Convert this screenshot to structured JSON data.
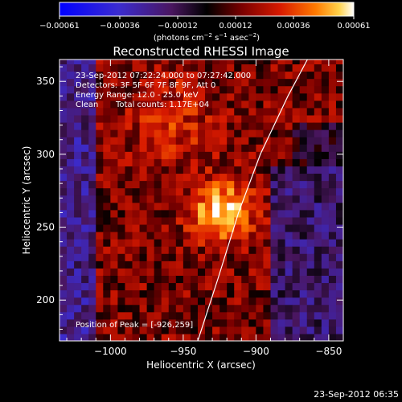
{
  "chart_data": {
    "type": "heatmap",
    "title": "Reconstructed RHESSI Image",
    "xlabel": "Heliocentric X (arcsec)",
    "ylabel": "Heliocentric Y (arcsec)",
    "xlim": [
      -1035,
      -840
    ],
    "ylim": [
      172,
      365
    ],
    "x_ticks": [
      -1000,
      -950,
      -900,
      -850
    ],
    "x_tick_labels": [
      "−1000",
      "−950",
      "−900",
      "−850"
    ],
    "y_ticks": [
      200,
      250,
      300,
      350
    ],
    "y_tick_labels": [
      "200",
      "250",
      "300",
      "350"
    ],
    "colorbar": {
      "range": [
        -0.00061,
        0.00061
      ],
      "ticks": [
        -0.00061,
        -0.00036,
        -0.00012,
        0.00012,
        0.00036,
        0.00061
      ],
      "tick_labels": [
        "−0.00061",
        "−0.00036",
        "−0.00012",
        "0.00012",
        "0.00036",
        "0.00061"
      ],
      "unit_label_parts": [
        "(photons cm",
        "−2",
        " s",
        "−1",
        " asec",
        "−2",
        ")"
      ],
      "colormap": "RHESSI (blue-purple-black-red-orange-yellow-white)"
    },
    "annotations": {
      "time_range": "23-Sep-2012 07:22:24.000 to 07:27:42.000",
      "detectors": "Detectors: 3F 5F 6F 7F 8F 9F, Att 0",
      "energy_range": "Energy Range: 12.0 - 25.0 keV",
      "method": "Clean",
      "total_counts": "Total counts: 1.17E+04",
      "peak": "Position of Peak = [-926,259]"
    },
    "peak_position": [
      -926,
      259
    ],
    "limb_curve": [
      [
        -940,
        172
      ],
      [
        -926,
        215
      ],
      [
        -912,
        260
      ],
      [
        -897,
        300
      ],
      [
        -878,
        340
      ],
      [
        -862,
        370
      ]
    ],
    "footer_timestamp": "23-Sep-2012 06:35"
  }
}
